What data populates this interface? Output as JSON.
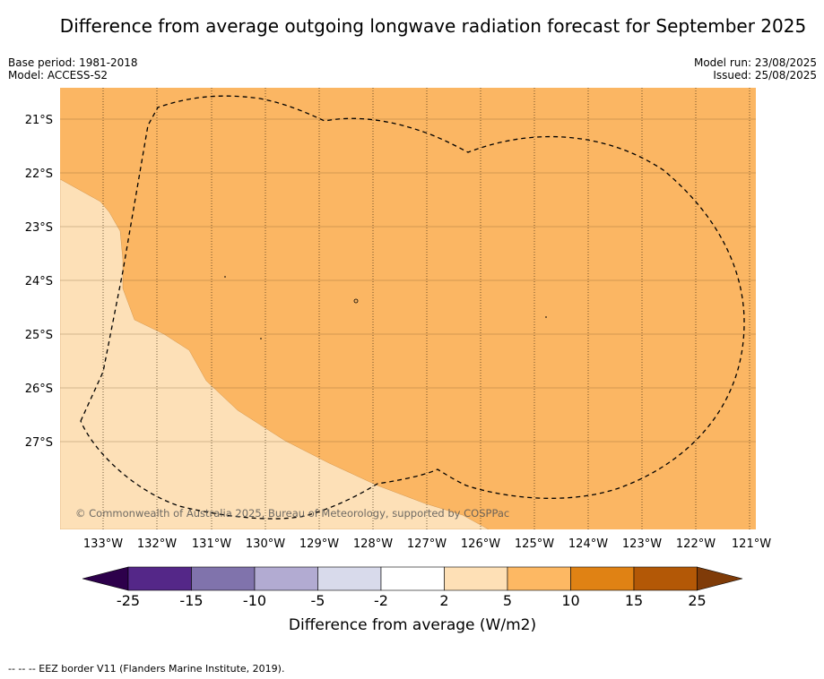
{
  "header": {
    "title": "Difference from average outgoing longwave radiation forecast for September 2025",
    "base_period": "Base period: 1981-2018",
    "model": "Model: ACCESS-S2",
    "model_run": "Model run: 23/08/2025",
    "issued": "Issued: 25/08/2025"
  },
  "map": {
    "lat_labels": [
      "21°S",
      "22°S",
      "23°S",
      "24°S",
      "25°S",
      "26°S",
      "27°S"
    ],
    "lon_labels": [
      "133°W",
      "132°W",
      "131°W",
      "130°W",
      "129°W",
      "128°W",
      "127°W",
      "126°W",
      "125°W",
      "124°W",
      "123°W",
      "122°W",
      "121°W"
    ],
    "copyright": "© Commonwealth of Australia 2025, Bureau of Meteorology, supported by COSPPac",
    "colors": {
      "region_5_10": "#fbb663",
      "region_2_5": "#fde0b7"
    }
  },
  "colorbar": {
    "ticks": [
      "-25",
      "-15",
      "-10",
      "-5",
      "-2",
      "2",
      "5",
      "10",
      "15",
      "25"
    ],
    "label": "Difference from average (W/m2)",
    "colors": [
      "#2d004b",
      "#542788",
      "#8073ac",
      "#b2abd2",
      "#d8daeb",
      "#ffffff",
      "#fee0b6",
      "#fdb863",
      "#e08214",
      "#b35806",
      "#7f3b08"
    ]
  },
  "footnote": "--  --  -- EEZ border V11 (Flanders Marine Institute, 2019)."
}
